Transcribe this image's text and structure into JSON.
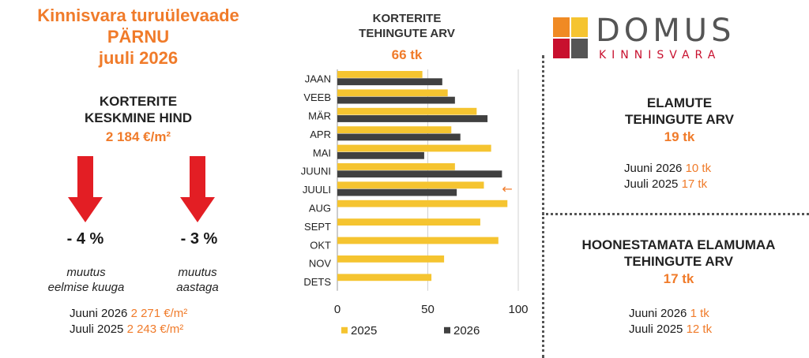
{
  "left": {
    "title_line1": "Kinnisvara turuülevaade",
    "title_line2": "PÄRNU",
    "title_line3": "juuli 2026",
    "avg_price_label_line1": "KORTERITE",
    "avg_price_label_line2": "KESKMINE HIND",
    "avg_price_value": "2 184 €/m²",
    "change_month_value": "- 4 %",
    "change_month_label_line1": "muutus",
    "change_month_label_line2": "eelmise kuuga",
    "change_year_value": "- 3 %",
    "change_year_label_line1": "muutus",
    "change_year_label_line2": "aastaga",
    "compare_june_label": "Juuni 2026",
    "compare_june_value": "2 271 €/m²",
    "compare_july_label": "Juuli 2025",
    "compare_july_value": "2 243 €/m²"
  },
  "chart": {
    "title_line1": "KORTERITE",
    "title_line2": "TEHINGUTE ARV",
    "total": "66 tk",
    "current_marker": "←"
  },
  "chart_data": {
    "type": "bar",
    "orientation": "horizontal",
    "categories": [
      "JAAN",
      "VEEB",
      "MÄR",
      "APR",
      "MAI",
      "JUUNI",
      "JUULI",
      "AUG",
      "SEPT",
      "OKT",
      "NOV",
      "DETS"
    ],
    "series": [
      {
        "name": "2025",
        "color": "#f5c430",
        "values": [
          47,
          61,
          77,
          63,
          85,
          65,
          81,
          94,
          79,
          89,
          59,
          52
        ]
      },
      {
        "name": "2026",
        "color": "#404040",
        "values": [
          58,
          65,
          83,
          68,
          48,
          91,
          66,
          null,
          null,
          null,
          null,
          null
        ]
      }
    ],
    "xlim": [
      0,
      100
    ],
    "xticks": [
      "0",
      "50",
      "100"
    ],
    "grid": true,
    "legend_position": "bottom"
  },
  "logo": {
    "name": "DOMUS",
    "subtitle": "KINNISVARA",
    "colors": [
      "#f08a24",
      "#f5c430",
      "#c8102e",
      "#555555"
    ]
  },
  "houses": {
    "title_line1": "ELAMUTE",
    "title_line2": "TEHINGUTE ARV",
    "total": "19 tk",
    "june_label": "Juuni 2026",
    "june_value": "10 tk",
    "july_label": "Juuli 2025",
    "july_value": "17 tk"
  },
  "land": {
    "title_line1": "HOONESTAMATA ELAMUMAA",
    "title_line2": "TEHINGUTE ARV",
    "total": "17 tk",
    "june_label": "Juuni 2026",
    "june_value": "1 tk",
    "july_label": "Juuli 2025",
    "july_value": "12 tk"
  },
  "colors": {
    "accent": "#f07b2a",
    "arrow": "#e31e24"
  }
}
